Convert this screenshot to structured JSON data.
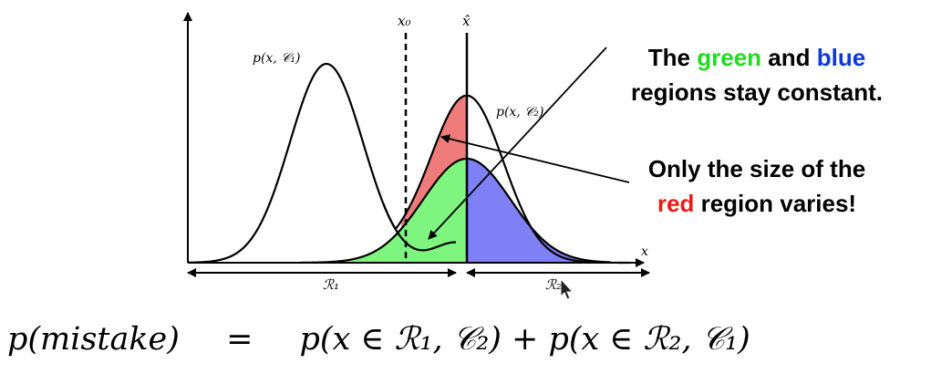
{
  "diagram": {
    "labels": {
      "x0": "x₀",
      "xhat": "x̂",
      "x_axis": "x",
      "curve1": "p(x, 𝒞₁)",
      "curve2": "p(x, 𝒞₂)",
      "region1": "ℛ₁",
      "region2": "ℛ₂"
    },
    "colors": {
      "red_region": "#f07b7b",
      "green_region": "#7ef57e",
      "blue_region": "#8080f6",
      "stroke": "#000000"
    }
  },
  "annotation1": {
    "part1": "The ",
    "green_word": "green",
    "part2": " and ",
    "blue_word": "blue",
    "part3": "regions stay constant."
  },
  "annotation2": {
    "part1": "Only the size of the",
    "red_word": "red",
    "part2": " region varies!"
  },
  "formula": {
    "lhs": "p(mistake)",
    "equals": "=",
    "rhs": "p(x ∈ ℛ₁, 𝒞₂) + p(x ∈ ℛ₂, 𝒞₁)"
  }
}
